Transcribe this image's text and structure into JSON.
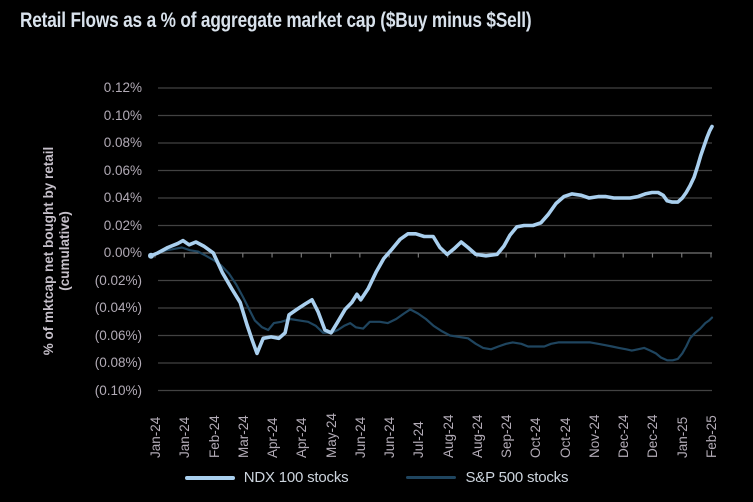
{
  "title": "Retail Flows as a % of aggregate market cap ($Buy minus $Sell)",
  "colors": {
    "background": "#000000",
    "grid": "#424242",
    "zero_line": "#757575",
    "tick": "#757575",
    "axis_text": "#b2abb6",
    "title_text": "#d9e2ec",
    "ndx": "#a9cfee",
    "sp500": "#1f455f"
  },
  "chart_data": {
    "type": "line",
    "title": "Retail Flows as a % of aggregate market cap ($Buy minus $Sell)",
    "ylabel_line1": "% of mktcap net bought by retail",
    "ylabel_line2": "(cumulative)",
    "xlabel": "",
    "grid": true,
    "legend_position": "bottom",
    "ylim": [
      -0.1,
      0.12
    ],
    "y_tick_values": [
      0.12,
      0.1,
      0.08,
      0.06,
      0.04,
      0.02,
      0.0,
      -0.02,
      -0.04,
      -0.06,
      -0.08,
      -0.1
    ],
    "y_tick_labels": [
      "0.12%",
      "0.10%",
      "0.08%",
      "0.06%",
      "0.04%",
      "0.02%",
      "0.00%",
      "(0.02%)",
      "(0.04%)",
      "(0.06%)",
      "(0.08%)",
      "(0.10%)"
    ],
    "x_tick_labels": [
      "Jan-24",
      "Jan-24",
      "Feb-24",
      "Mar-24",
      "Apr-24",
      "Apr-24",
      "May-24",
      "Jun-24",
      "Jun-24",
      "Jul-24",
      "Aug-24",
      "Aug-24",
      "Sep-24",
      "Oct-24",
      "Oct-24",
      "Nov-24",
      "Dec-24",
      "Dec-24",
      "Jan-25",
      "Feb-25"
    ],
    "value_unit": "% of aggregate market cap, cumulative",
    "series": [
      {
        "name": "S&P 500 stocks",
        "color": "#1f455f",
        "width": 2.2,
        "points": [
          [
            0.0,
            -0.002
          ],
          [
            0.012,
            0.0
          ],
          [
            0.027,
            0.002
          ],
          [
            0.041,
            0.003
          ],
          [
            0.055,
            0.004
          ],
          [
            0.07,
            0.002
          ],
          [
            0.084,
            0.001
          ],
          [
            0.098,
            -0.002
          ],
          [
            0.111,
            -0.005
          ],
          [
            0.125,
            -0.009
          ],
          [
            0.139,
            -0.015
          ],
          [
            0.152,
            -0.023
          ],
          [
            0.164,
            -0.032
          ],
          [
            0.175,
            -0.041
          ],
          [
            0.185,
            -0.049
          ],
          [
            0.198,
            -0.054
          ],
          [
            0.209,
            -0.056
          ],
          [
            0.219,
            -0.051
          ],
          [
            0.232,
            -0.05
          ],
          [
            0.248,
            -0.048
          ],
          [
            0.264,
            -0.049
          ],
          [
            0.28,
            -0.05
          ],
          [
            0.294,
            -0.053
          ],
          [
            0.307,
            -0.058
          ],
          [
            0.321,
            -0.058
          ],
          [
            0.333,
            -0.056
          ],
          [
            0.344,
            -0.053
          ],
          [
            0.355,
            -0.051
          ],
          [
            0.365,
            -0.054
          ],
          [
            0.378,
            -0.055
          ],
          [
            0.39,
            -0.05
          ],
          [
            0.408,
            -0.05
          ],
          [
            0.422,
            -0.051
          ],
          [
            0.437,
            -0.048
          ],
          [
            0.451,
            -0.044
          ],
          [
            0.462,
            -0.041
          ],
          [
            0.476,
            -0.044
          ],
          [
            0.49,
            -0.048
          ],
          [
            0.504,
            -0.053
          ],
          [
            0.519,
            -0.057
          ],
          [
            0.533,
            -0.06
          ],
          [
            0.549,
            -0.061
          ],
          [
            0.565,
            -0.062
          ],
          [
            0.579,
            -0.066
          ],
          [
            0.592,
            -0.069
          ],
          [
            0.606,
            -0.07
          ],
          [
            0.619,
            -0.068
          ],
          [
            0.633,
            -0.066
          ],
          [
            0.645,
            -0.065
          ],
          [
            0.66,
            -0.066
          ],
          [
            0.672,
            -0.068
          ],
          [
            0.686,
            -0.068
          ],
          [
            0.701,
            -0.068
          ],
          [
            0.713,
            -0.066
          ],
          [
            0.726,
            -0.065
          ],
          [
            0.74,
            -0.065
          ],
          [
            0.754,
            -0.065
          ],
          [
            0.768,
            -0.065
          ],
          [
            0.783,
            -0.065
          ],
          [
            0.797,
            -0.066
          ],
          [
            0.809,
            -0.067
          ],
          [
            0.822,
            -0.068
          ],
          [
            0.834,
            -0.069
          ],
          [
            0.847,
            -0.07
          ],
          [
            0.857,
            -0.071
          ],
          [
            0.868,
            -0.07
          ],
          [
            0.879,
            -0.069
          ],
          [
            0.89,
            -0.071
          ],
          [
            0.9,
            -0.073
          ],
          [
            0.909,
            -0.076
          ],
          [
            0.92,
            -0.078
          ],
          [
            0.93,
            -0.078
          ],
          [
            0.939,
            -0.077
          ],
          [
            0.947,
            -0.073
          ],
          [
            0.954,
            -0.068
          ],
          [
            0.961,
            -0.062
          ],
          [
            0.97,
            -0.058
          ],
          [
            0.979,
            -0.055
          ],
          [
            0.988,
            -0.051
          ],
          [
            0.995,
            -0.049
          ],
          [
            1.0,
            -0.047
          ]
        ]
      },
      {
        "name": "NDX 100 stocks",
        "color": "#a9cfee",
        "width": 3.6,
        "points": [
          [
            0.0,
            -0.002
          ],
          [
            0.012,
            0.0
          ],
          [
            0.03,
            0.004
          ],
          [
            0.048,
            0.007
          ],
          [
            0.057,
            0.009
          ],
          [
            0.068,
            0.006
          ],
          [
            0.08,
            0.008
          ],
          [
            0.094,
            0.005
          ],
          [
            0.111,
            0.0
          ],
          [
            0.127,
            -0.014
          ],
          [
            0.144,
            -0.026
          ],
          [
            0.159,
            -0.036
          ],
          [
            0.171,
            -0.052
          ],
          [
            0.18,
            -0.063
          ],
          [
            0.189,
            -0.073
          ],
          [
            0.2,
            -0.062
          ],
          [
            0.214,
            -0.061
          ],
          [
            0.228,
            -0.062
          ],
          [
            0.239,
            -0.058
          ],
          [
            0.246,
            -0.045
          ],
          [
            0.26,
            -0.041
          ],
          [
            0.275,
            -0.037
          ],
          [
            0.287,
            -0.034
          ],
          [
            0.298,
            -0.043
          ],
          [
            0.31,
            -0.056
          ],
          [
            0.321,
            -0.058
          ],
          [
            0.333,
            -0.05
          ],
          [
            0.346,
            -0.041
          ],
          [
            0.358,
            -0.036
          ],
          [
            0.367,
            -0.03
          ],
          [
            0.374,
            -0.034
          ],
          [
            0.387,
            -0.026
          ],
          [
            0.401,
            -0.014
          ],
          [
            0.415,
            -0.004
          ],
          [
            0.43,
            0.003
          ],
          [
            0.444,
            0.01
          ],
          [
            0.458,
            0.014
          ],
          [
            0.472,
            0.014
          ],
          [
            0.487,
            0.012
          ],
          [
            0.503,
            0.012
          ],
          [
            0.515,
            0.004
          ],
          [
            0.528,
            -0.001
          ],
          [
            0.54,
            0.003
          ],
          [
            0.553,
            0.008
          ],
          [
            0.565,
            0.004
          ],
          [
            0.579,
            -0.001
          ],
          [
            0.597,
            -0.002
          ],
          [
            0.617,
            -0.001
          ],
          [
            0.629,
            0.005
          ],
          [
            0.64,
            0.013
          ],
          [
            0.652,
            0.019
          ],
          [
            0.665,
            0.02
          ],
          [
            0.681,
            0.02
          ],
          [
            0.695,
            0.022
          ],
          [
            0.708,
            0.028
          ],
          [
            0.722,
            0.036
          ],
          [
            0.736,
            0.041
          ],
          [
            0.75,
            0.043
          ],
          [
            0.767,
            0.042
          ],
          [
            0.781,
            0.04
          ],
          [
            0.797,
            0.041
          ],
          [
            0.811,
            0.041
          ],
          [
            0.825,
            0.04
          ],
          [
            0.84,
            0.04
          ],
          [
            0.854,
            0.04
          ],
          [
            0.868,
            0.041
          ],
          [
            0.881,
            0.043
          ],
          [
            0.893,
            0.044
          ],
          [
            0.904,
            0.044
          ],
          [
            0.913,
            0.042
          ],
          [
            0.92,
            0.038
          ],
          [
            0.929,
            0.037
          ],
          [
            0.939,
            0.037
          ],
          [
            0.947,
            0.04
          ],
          [
            0.954,
            0.044
          ],
          [
            0.961,
            0.049
          ],
          [
            0.968,
            0.055
          ],
          [
            0.975,
            0.064
          ],
          [
            0.98,
            0.071
          ],
          [
            0.986,
            0.078
          ],
          [
            0.991,
            0.084
          ],
          [
            0.996,
            0.089
          ],
          [
            1.0,
            0.092
          ]
        ]
      }
    ]
  }
}
